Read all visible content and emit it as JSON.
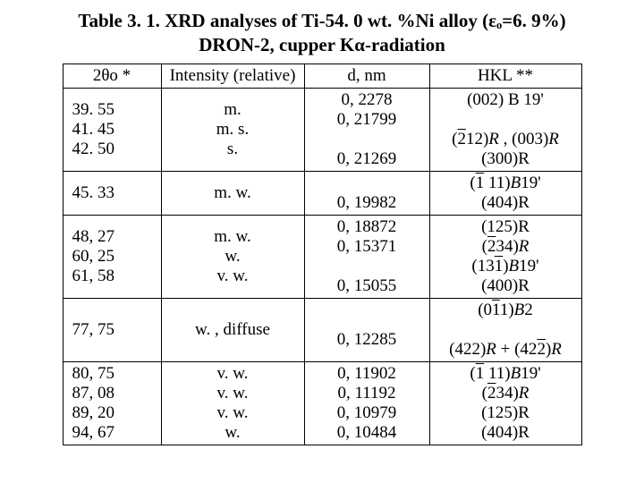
{
  "title_line1": "Table 3. 1.   XRD analyses of Ti-54. 0 wt. %Ni alloy (εₒ=6. 9%)",
  "title_line2": "DRON-2, cupper Kα-radiation",
  "header": {
    "c1": "2θo *",
    "c2": "Intensity (relative)",
    "c3": "d, nm",
    "c4": "HKL **"
  },
  "rows": [
    {
      "c1": [
        "39. 55",
        "41. 45",
        "42. 50"
      ],
      "c2": [
        "m.",
        "m. s.",
        "s."
      ],
      "c3": [
        "0, 2278",
        "0, 21799",
        "",
        "0, 21269"
      ],
      "c4_type": "html",
      "c4": "(002) B 19'<br><br><span class='hkl-line'>(<span class='over'>2</span>12)<i>R</i> , (003)<i>R</i></span><br>(300)R"
    },
    {
      "c1": [
        "45. 33"
      ],
      "c2": [
        "m. w."
      ],
      "c3": [
        "",
        "0, 19982"
      ],
      "c4_type": "html",
      "c4": "<span class='hkl-line'>(<span class='over'>1</span> 11)<i>B</i>19'</span><br>(404)R"
    },
    {
      "c1": [
        "48, 27",
        "60, 25",
        "61, 58"
      ],
      "c2": [
        "m. w.",
        "w.",
        "v. w."
      ],
      "c3": [
        "0, 18872",
        "0, 15371",
        "",
        "0, 15055"
      ],
      "c4_type": "html",
      "c4": "(125)R<br><span class='hkl-line'>(<span class='over'>2</span>34)<i>R</i></span><br><span class='hkl-line'>(13<span class='over'>1</span>)<i>B</i>19'</span><br>(400)R"
    },
    {
      "c1": [
        "77, 75"
      ],
      "c2": [
        "w. , diffuse"
      ],
      "c3": [
        "",
        "0, 12285"
      ],
      "c4_type": "html",
      "c4": "<span class='hkl-line'>(0<span class='over'>1</span>1)<i>B</i>2</span><br><br><span class='hkl-line'>(422)<i>R</i> + (42<span class='over'>2</span>)<i>R</i></span>"
    },
    {
      "c1": [
        "80, 75",
        "87, 08",
        "89, 20",
        "94, 67"
      ],
      "c2": [
        "v. w.",
        "v. w.",
        "v. w.",
        "w."
      ],
      "c3": [
        "0, 11902",
        "0, 11192",
        "0, 10979",
        "0, 10484"
      ],
      "c4_type": "html",
      "c4": "<span class='hkl-line'>(<span class='over'>1</span> 11)<i>B</i>19'</span><br><span class='hkl-line'>(<span class='over'>2</span>34)<i>R</i></span><br>(125)R<br>(404)R"
    }
  ],
  "col_widths": [
    "110px",
    "160px",
    "140px",
    "170px"
  ]
}
